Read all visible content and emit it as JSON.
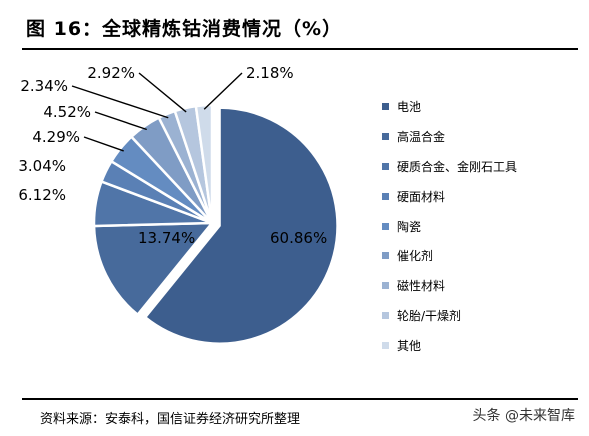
{
  "title": "图 16：全球精炼钴消费情况（%）",
  "source": "资料来源：安泰科，国信证券经济研究所整理",
  "watermark": "头条 @未来智库",
  "chart_data": {
    "type": "pie",
    "slices": [
      {
        "name": "电池",
        "value": 60.86,
        "label": "60.86%",
        "color": "#3d5e8e"
      },
      {
        "name": "高温合金",
        "value": 13.74,
        "label": "13.74%",
        "color": "#476a9b"
      },
      {
        "name": "硬质合金、金刚石工具",
        "value": 6.12,
        "label": "6.12%",
        "color": "#5075a8"
      },
      {
        "name": "硬面材料",
        "value": 3.04,
        "label": "3.04%",
        "color": "#5a80b5"
      },
      {
        "name": "陶瓷",
        "value": 4.29,
        "label": "4.29%",
        "color": "#648cc1"
      },
      {
        "name": "催化剂",
        "value": 4.52,
        "label": "4.52%",
        "color": "#7f9cc5"
      },
      {
        "name": "磁性材料",
        "value": 2.34,
        "label": "2.34%",
        "color": "#9bb2d2"
      },
      {
        "name": "轮胎/干燥剂",
        "value": 2.92,
        "label": "2.92%",
        "color": "#b5c6de"
      },
      {
        "name": "其他",
        "value": 2.18,
        "label": "2.18%",
        "color": "#cfdbea"
      }
    ],
    "legend_position": "right"
  }
}
